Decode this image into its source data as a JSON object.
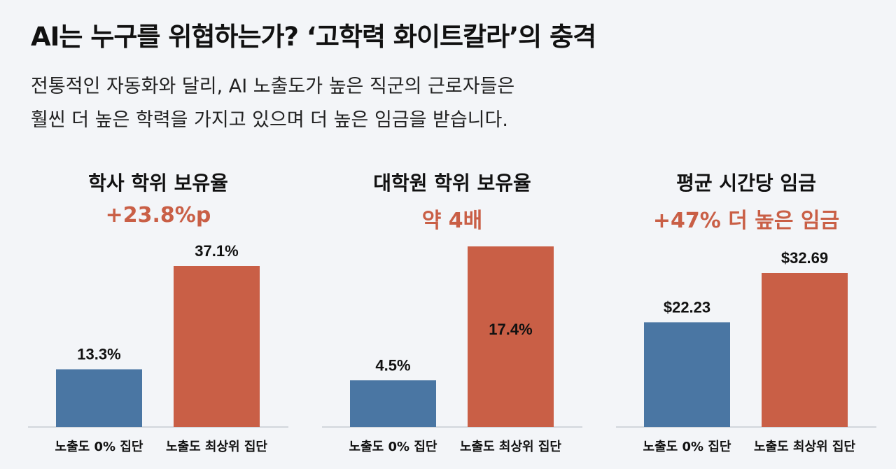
{
  "title": "AI는 누구를 위협하는가? ‘고학력 화이트칼라’의 충격",
  "subtitle": [
    "전통적인 자동화와 달리, AI 노출도가 높은 직군의 근로자들은",
    "훨씬 더 높은 학력을 가지고 있으며 더 높은 임금을 받습니다."
  ],
  "colors": {
    "low_exposure": "#4a76a3",
    "high_exposure": "#c95f46",
    "headline": "#c95f46"
  },
  "chart_data": [
    {
      "type": "bar",
      "title": "학사 학위 보유율",
      "headline": "+23.8%p",
      "categories": [
        "노출도 0% 집단",
        "노출도 최상위 집단"
      ],
      "values": [
        13.3,
        37.1
      ],
      "value_labels": [
        "13.3%",
        "37.1%"
      ],
      "label_position": [
        "above",
        "above"
      ]
    },
    {
      "type": "bar",
      "title": "대학원 학위 보유율",
      "headline": "약 4배",
      "categories": [
        "노출도 0% 집단",
        "노출도 최상위 집단"
      ],
      "values": [
        4.5,
        17.4
      ],
      "value_labels": [
        "4.5%",
        "17.4%"
      ],
      "label_position": [
        "above",
        "inside"
      ]
    },
    {
      "type": "bar",
      "title": "평균 시간당 임금",
      "headline": "+47% 더 높은 임금",
      "categories": [
        "노출도 0% 집단",
        "노출도 최상위 집단"
      ],
      "values": [
        22.23,
        32.69
      ],
      "value_labels": [
        "$22.23",
        "$32.69"
      ],
      "label_position": [
        "above",
        "above"
      ]
    }
  ]
}
